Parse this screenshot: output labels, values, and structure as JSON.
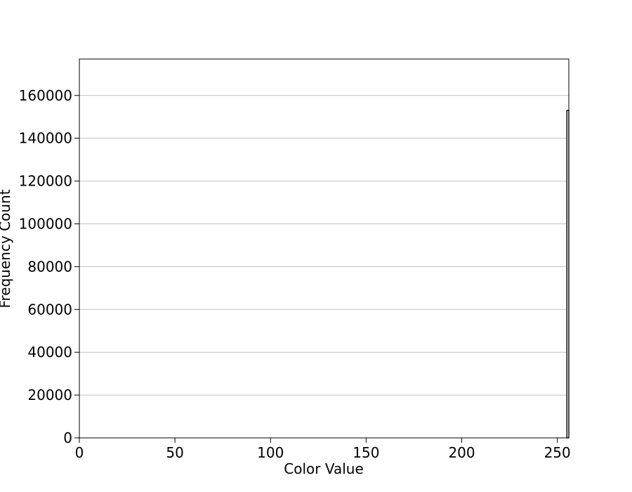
{
  "chart_data": {
    "type": "bar",
    "title": "",
    "xlabel": "Color Value",
    "ylabel": "Frequency Count",
    "xlim": [
      0,
      256
    ],
    "ylim": [
      0,
      177000
    ],
    "x_ticks": [
      0,
      50,
      100,
      150,
      200,
      250
    ],
    "y_ticks": [
      0,
      20000,
      40000,
      60000,
      80000,
      100000,
      120000,
      140000,
      160000
    ],
    "grid": "horizontal",
    "legend": "none",
    "bar_color": "#000000",
    "grid_color": "#c0c0c0",
    "bins": [
      {
        "x": 255,
        "value": 153000
      }
    ]
  }
}
